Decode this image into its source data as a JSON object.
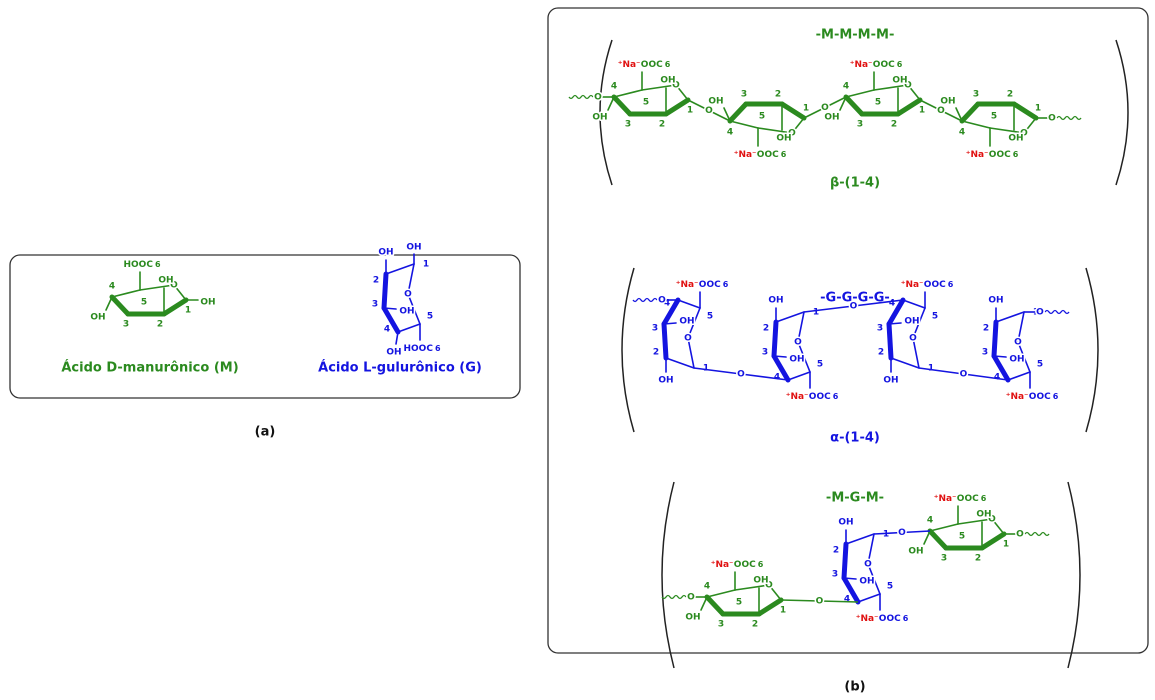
{
  "panel_a": {
    "label": "(a)",
    "monomers": [
      {
        "name": "Ácido D-manurônico (M)",
        "color": "#2b8a1f",
        "acid": "HOOC",
        "numbers": [
          "6",
          "5",
          "4",
          "3",
          "2",
          "1"
        ],
        "ring_o": "O",
        "oh": [
          "OH",
          "OH",
          "OH"
        ]
      },
      {
        "name": "Ácido L-gulurônico (G)",
        "color": "#1414e0",
        "acid": "HOOC",
        "numbers": [
          "6",
          "5",
          "4",
          "3",
          "2",
          "1"
        ],
        "ring_o": "O",
        "oh": [
          "OH",
          "OH",
          "OH",
          "OH"
        ]
      }
    ]
  },
  "panel_b": {
    "label": "(b)",
    "chains": [
      {
        "title": "-M-M-M-M-",
        "color": "#2b8a1f",
        "linkage": "β-(1-4)",
        "links": [
          "O",
          "O",
          "O",
          "O",
          "O"
        ],
        "units": [
          {
            "color": "#2b8a1f",
            "counterion": "⁺Na⁻",
            "acid": "OOC",
            "numbers": [
              "6",
              "5",
              "4",
              "3",
              "2",
              "1"
            ],
            "ring_o": "O",
            "oh": [
              "OH",
              "OH"
            ]
          },
          {
            "color": "#2b8a1f",
            "counterion": "⁺Na⁻",
            "acid": "OOC",
            "numbers": [
              "6",
              "5",
              "4",
              "3",
              "2",
              "1"
            ],
            "ring_o": "O",
            "oh": [
              "OH",
              "OH"
            ]
          },
          {
            "color": "#2b8a1f",
            "counterion": "⁺Na⁻",
            "acid": "OOC",
            "numbers": [
              "6",
              "5",
              "4",
              "3",
              "2",
              "1"
            ],
            "ring_o": "O",
            "oh": [
              "OH",
              "OH"
            ]
          },
          {
            "color": "#2b8a1f",
            "counterion": "⁺Na⁻",
            "acid": "OOC",
            "numbers": [
              "6",
              "5",
              "4",
              "3",
              "2",
              "1"
            ],
            "ring_o": "O",
            "oh": [
              "OH",
              "OH"
            ]
          }
        ]
      },
      {
        "title": "-G-G-G-G-",
        "color": "#1414e0",
        "linkage": "α-(1-4)",
        "links": [
          "O",
          "O",
          "O",
          "O",
          "O"
        ],
        "units": [
          {
            "color": "#1414e0",
            "counterion": "⁺Na⁻",
            "acid": "OOC",
            "numbers": [
              "6",
              "5",
              "4",
              "3",
              "2",
              "1"
            ],
            "ring_o": "O",
            "oh": [
              "OH",
              "OH"
            ]
          },
          {
            "color": "#1414e0",
            "counterion": "⁺Na⁻",
            "acid": "OOC",
            "numbers": [
              "6",
              "5",
              "4",
              "3",
              "2",
              "1"
            ],
            "ring_o": "O",
            "oh": [
              "OH",
              "OH"
            ]
          },
          {
            "color": "#1414e0",
            "counterion": "⁺Na⁻",
            "acid": "OOC",
            "numbers": [
              "6",
              "5",
              "4",
              "3",
              "2",
              "1"
            ],
            "ring_o": "O",
            "oh": [
              "OH",
              "OH"
            ]
          },
          {
            "color": "#1414e0",
            "counterion": "⁺Na⁻",
            "acid": "OOC",
            "numbers": [
              "6",
              "5",
              "4",
              "3",
              "2",
              "1"
            ],
            "ring_o": "O",
            "oh": [
              "OH",
              "OH"
            ]
          }
        ]
      },
      {
        "title": "-M-G-M-",
        "color": "#2b8a1f",
        "links": [
          "O",
          "O",
          "O",
          "O"
        ],
        "units": [
          {
            "color": "#2b8a1f",
            "counterion": "⁺Na⁻",
            "acid": "OOC",
            "numbers": [
              "6",
              "5",
              "4",
              "3",
              "2",
              "1"
            ],
            "ring_o": "O",
            "oh": [
              "OH",
              "OH"
            ]
          },
          {
            "color": "#1414e0",
            "counterion": "⁺Na⁻",
            "acid": "OOC",
            "numbers": [
              "6",
              "5",
              "4",
              "3",
              "2",
              "1"
            ],
            "ring_o": "O",
            "oh": [
              "OH",
              "OH"
            ]
          },
          {
            "color": "#2b8a1f",
            "counterion": "⁺Na⁻",
            "acid": "OOC",
            "numbers": [
              "6",
              "5",
              "4",
              "3",
              "2",
              "1"
            ],
            "ring_o": "O",
            "oh": [
              "OH",
              "OH"
            ]
          }
        ]
      }
    ]
  }
}
